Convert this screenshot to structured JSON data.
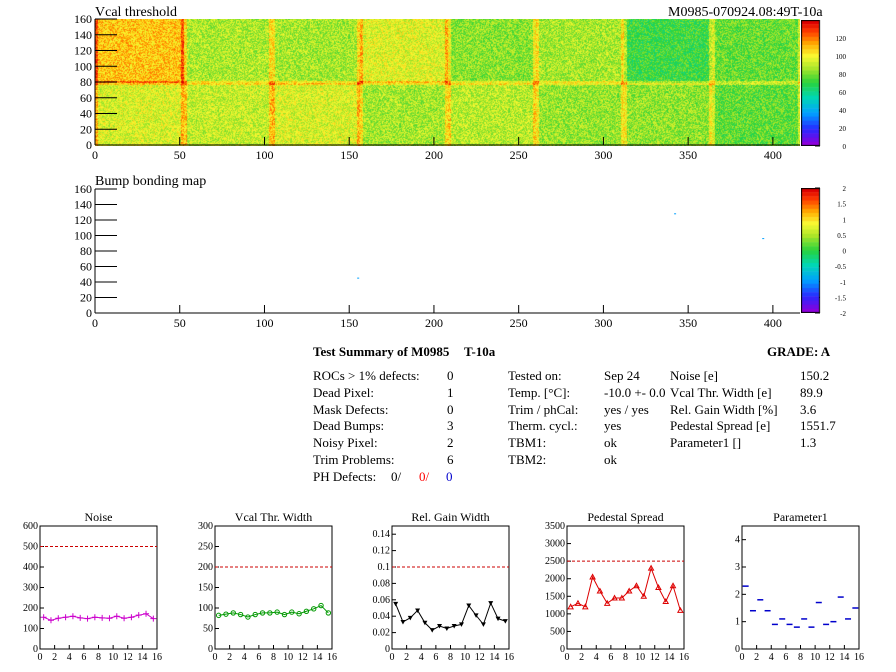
{
  "header": {
    "map1_title": "Vcal threshold",
    "module_id": "M0985-070924.08:49T-10a",
    "map2_title": "Bump bonding map"
  },
  "maps": [
    {
      "name": "vcal-threshold-map",
      "xlim": [
        0,
        416
      ],
      "ylim": [
        0,
        160
      ],
      "xticks": [
        "0",
        "50",
        "100",
        "150",
        "200",
        "250",
        "300",
        "350",
        "400"
      ],
      "yticks": [
        "0",
        "20",
        "40",
        "60",
        "80",
        "100",
        "120",
        "140",
        "160"
      ],
      "palette": "root-rainbow",
      "colorbar_ticks": [
        "0",
        "20",
        "40",
        "60",
        "80",
        "100",
        "120"
      ],
      "colorbar_range": [
        0,
        140
      ],
      "roc_mean_levels": [
        [
          110,
          88,
          87,
          96,
          83,
          87,
          72,
          78
        ],
        [
          95,
          92,
          95,
          87,
          90,
          85,
          84,
          77
        ]
      ]
    },
    {
      "name": "bump-bonding-map",
      "xlim": [
        0,
        416
      ],
      "ylim": [
        0,
        160
      ],
      "xticks": [
        "0",
        "50",
        "100",
        "150",
        "200",
        "250",
        "300",
        "350",
        "400"
      ],
      "yticks": [
        "0",
        "20",
        "40",
        "60",
        "80",
        "100",
        "120",
        "140",
        "160"
      ],
      "colorbar_ticks": [
        "2",
        "1.5",
        "1",
        "0.5",
        "0",
        "-0.5",
        "-1",
        "-1.5",
        "-2"
      ],
      "colorbar_range": [
        -2,
        2
      ],
      "defect_points": [
        [
          342,
          128
        ],
        [
          394,
          96
        ],
        [
          155,
          45
        ]
      ]
    }
  ],
  "summary": {
    "title": "Test Summary of M0985",
    "temp_tag": "T-10a",
    "grade": "GRADE:  A",
    "left": [
      {
        "label": "ROCs > 1% defects:",
        "value": "0"
      },
      {
        "label": "Dead Pixel:",
        "value": "1"
      },
      {
        "label": "Mask Defects:",
        "value": "0"
      },
      {
        "label": "Dead Bumps:",
        "value": "3"
      },
      {
        "label": "Noisy Pixel:",
        "value": "2"
      },
      {
        "label": "Trim Problems:",
        "value": "6"
      }
    ],
    "ph_defects": {
      "label": "PH Defects:",
      "v1": "0/",
      "v2": "0/",
      "v3": "0",
      "c1": "#000000",
      "c2": "#ff0000",
      "c3": "#0000cc"
    },
    "middle": [
      {
        "label": "Tested on:",
        "value": "Sep 24"
      },
      {
        "label": "Temp. [°C]:",
        "value": "-10.0 +- 0.0"
      },
      {
        "label": "Trim / phCal:",
        "value": "yes / yes"
      },
      {
        "label": "Therm. cycl.:",
        "value": "yes"
      },
      {
        "label": "TBM1:",
        "value": "ok"
      },
      {
        "label": "TBM2:",
        "value": "ok"
      }
    ],
    "right": [
      {
        "label": "Noise [e]",
        "value": "150.2"
      },
      {
        "label": "Vcal Thr. Width [e]",
        "value": "89.9"
      },
      {
        "label": "Rel. Gain Width [%]",
        "value": "3.6"
      },
      {
        "label": "Pedestal Spread [e]",
        "value": "1551.7"
      },
      {
        "label": "Parameter1 []",
        "value": "1.3"
      }
    ]
  },
  "chart_data": [
    {
      "type": "line",
      "title": "Noise",
      "color": "#cc00cc",
      "marker": "plus",
      "x": [
        0,
        1,
        2,
        3,
        4,
        5,
        6,
        7,
        8,
        9,
        10,
        11,
        12,
        13,
        14,
        15
      ],
      "values": [
        155,
        140,
        150,
        155,
        160,
        152,
        148,
        155,
        152,
        150,
        160,
        150,
        155,
        165,
        172,
        148
      ],
      "ylim": [
        0,
        600
      ],
      "yticks": [
        "0",
        "100",
        "200",
        "300",
        "400",
        "500",
        "600"
      ],
      "threshold": 500
    },
    {
      "type": "line",
      "title": "Vcal Thr. Width",
      "color": "#009900",
      "marker": "circle",
      "x": [
        0,
        1,
        2,
        3,
        4,
        5,
        6,
        7,
        8,
        9,
        10,
        11,
        12,
        13,
        14,
        15
      ],
      "values": [
        82,
        85,
        88,
        84,
        78,
        84,
        88,
        88,
        90,
        84,
        90,
        86,
        92,
        98,
        106,
        88
      ],
      "ylim": [
        0,
        300
      ],
      "yticks": [
        "0",
        "50",
        "100",
        "150",
        "200",
        "250",
        "300"
      ],
      "threshold": 200
    },
    {
      "type": "line",
      "title": "Rel. Gain Width",
      "color": "#000000",
      "marker": "triangle-down",
      "x": [
        0,
        1,
        2,
        3,
        4,
        5,
        6,
        7,
        8,
        9,
        10,
        11,
        12,
        13,
        14,
        15
      ],
      "values": [
        0.055,
        0.033,
        0.038,
        0.047,
        0.032,
        0.023,
        0.028,
        0.025,
        0.028,
        0.03,
        0.053,
        0.041,
        0.03,
        0.056,
        0.037,
        0.034
      ],
      "ylim": [
        0,
        0.15
      ],
      "yticks": [
        "0",
        "0.02",
        "0.04",
        "0.06",
        "0.08",
        "0.1",
        "0.12",
        "0.14"
      ],
      "threshold": 0.1
    },
    {
      "type": "line",
      "title": "Pedestal Spread",
      "color": "#dd0000",
      "marker": "triangle-up",
      "x": [
        0,
        1,
        2,
        3,
        4,
        5,
        6,
        7,
        8,
        9,
        10,
        11,
        12,
        13,
        14,
        15
      ],
      "values": [
        1200,
        1300,
        1200,
        2050,
        1650,
        1300,
        1450,
        1450,
        1650,
        1800,
        1500,
        2300,
        1750,
        1350,
        1800,
        1100
      ],
      "ylim": [
        0,
        3500
      ],
      "yticks": [
        "0",
        "500",
        "1000",
        "1500",
        "2000",
        "2500",
        "3000",
        "3500"
      ],
      "threshold": 2500
    },
    {
      "type": "scatter",
      "title": "Parameter1",
      "color": "#0000cc",
      "marker": "hbar",
      "x": [
        0,
        1,
        2,
        3,
        4,
        5,
        6,
        7,
        8,
        9,
        10,
        11,
        12,
        13,
        14,
        15
      ],
      "values": [
        2.3,
        1.4,
        1.8,
        1.4,
        0.9,
        1.1,
        0.9,
        0.8,
        1.1,
        0.8,
        1.7,
        0.9,
        1.0,
        1.9,
        1.1,
        1.5
      ],
      "ylim": [
        0,
        4.5
      ],
      "yticks": [
        "0",
        "1",
        "2",
        "3",
        "4"
      ],
      "threshold": null
    }
  ],
  "small_xticks": [
    "0",
    "2",
    "4",
    "6",
    "8",
    "10",
    "12",
    "14",
    "16"
  ]
}
